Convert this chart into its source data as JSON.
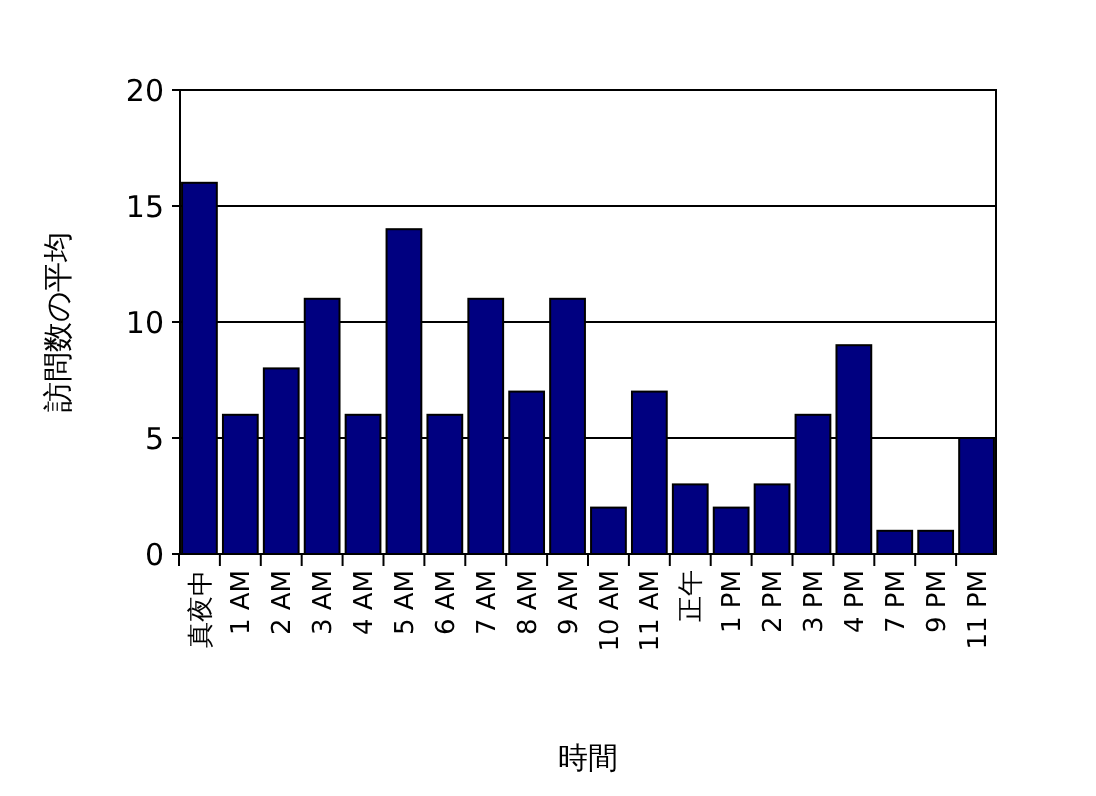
{
  "chart_data": {
    "type": "bar",
    "xlabel": "時間",
    "ylabel": "訪問数の平均",
    "categories": [
      "真夜中",
      "1 AM",
      "2 AM",
      "3 AM",
      "4 AM",
      "5 AM",
      "6 AM",
      "7 AM",
      "8 AM",
      "9 AM",
      "10 AM",
      "11 AM",
      "正午",
      "1 PM",
      "2 PM",
      "3 PM",
      "4 PM",
      "7 PM",
      "9 PM",
      "11 PM"
    ],
    "values": [
      16,
      6,
      8,
      11,
      6,
      14,
      6,
      11,
      7,
      11,
      2,
      7,
      3,
      2,
      3,
      6,
      9,
      1,
      1,
      5
    ],
    "color": "#000080",
    "ylim": [
      0,
      20
    ],
    "yticks": [
      0,
      5,
      10,
      15,
      20
    ],
    "grid": "y"
  }
}
